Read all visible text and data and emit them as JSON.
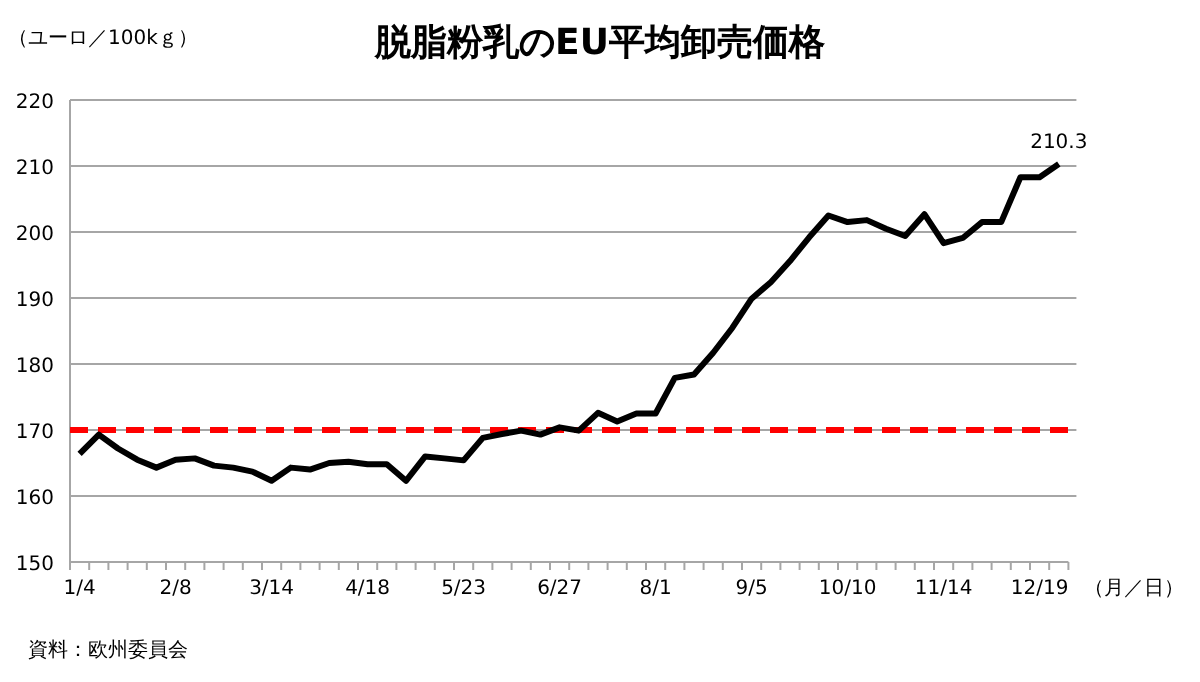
{
  "chart_data": {
    "type": "line",
    "title": "脱脂粉乳のEU平均卸売価格",
    "ylabel": "（ユーロ／100kｇ）",
    "xlabel": "（月／日）",
    "categories": [
      "1/4",
      null,
      null,
      null,
      null,
      "2/8",
      null,
      null,
      null,
      null,
      "3/14",
      null,
      null,
      null,
      null,
      "4/18",
      null,
      null,
      null,
      null,
      "5/23",
      null,
      null,
      null,
      null,
      "6/27",
      null,
      null,
      null,
      null,
      "8/1",
      null,
      null,
      null,
      null,
      "9/5",
      null,
      null,
      null,
      null,
      "10/10",
      null,
      null,
      null,
      null,
      "11/14",
      null,
      null,
      null,
      null,
      "12/19",
      null
    ],
    "series": [
      {
        "color": "#000000",
        "values": [
          166.4,
          169.3,
          167.2,
          165.5,
          164.3,
          165.5,
          165.7,
          164.6,
          164.3,
          163.7,
          162.3,
          164.3,
          164.0,
          165.0,
          165.2,
          164.8,
          164.8,
          162.3,
          166.0,
          165.7,
          165.4,
          168.8,
          169.4,
          169.9,
          169.3,
          170.4,
          169.9,
          172.6,
          171.3,
          172.5,
          172.5,
          177.9,
          178.4,
          181.7,
          185.5,
          189.9,
          192.4,
          195.6,
          199.2,
          202.5,
          201.5,
          201.8,
          200.5,
          199.4,
          202.7,
          198.3,
          199.1,
          201.5,
          201.5,
          208.3,
          208.3,
          210.3
        ],
        "value_labels": [
          null,
          null,
          null,
          null,
          null,
          null,
          null,
          null,
          null,
          null,
          null,
          null,
          null,
          null,
          null,
          null,
          null,
          null,
          null,
          null,
          null,
          null,
          null,
          null,
          null,
          null,
          null,
          null,
          null,
          null,
          null,
          null,
          null,
          null,
          null,
          null,
          null,
          null,
          null,
          null,
          null,
          null,
          null,
          null,
          null,
          null,
          null,
          null,
          null,
          null,
          null,
          "210.3"
        ]
      }
    ],
    "ylim": [
      150,
      220
    ],
    "yticks": [
      150,
      160,
      170,
      180,
      190,
      200,
      210,
      220
    ],
    "grid": "y",
    "marker": "none",
    "line_style": "solid",
    "ref_lines": [
      {
        "axis": "y",
        "value": 170,
        "color": "#ff0000",
        "line_style": "dashed"
      }
    ],
    "annotations": [
      "資料：欧州委員会"
    ]
  }
}
